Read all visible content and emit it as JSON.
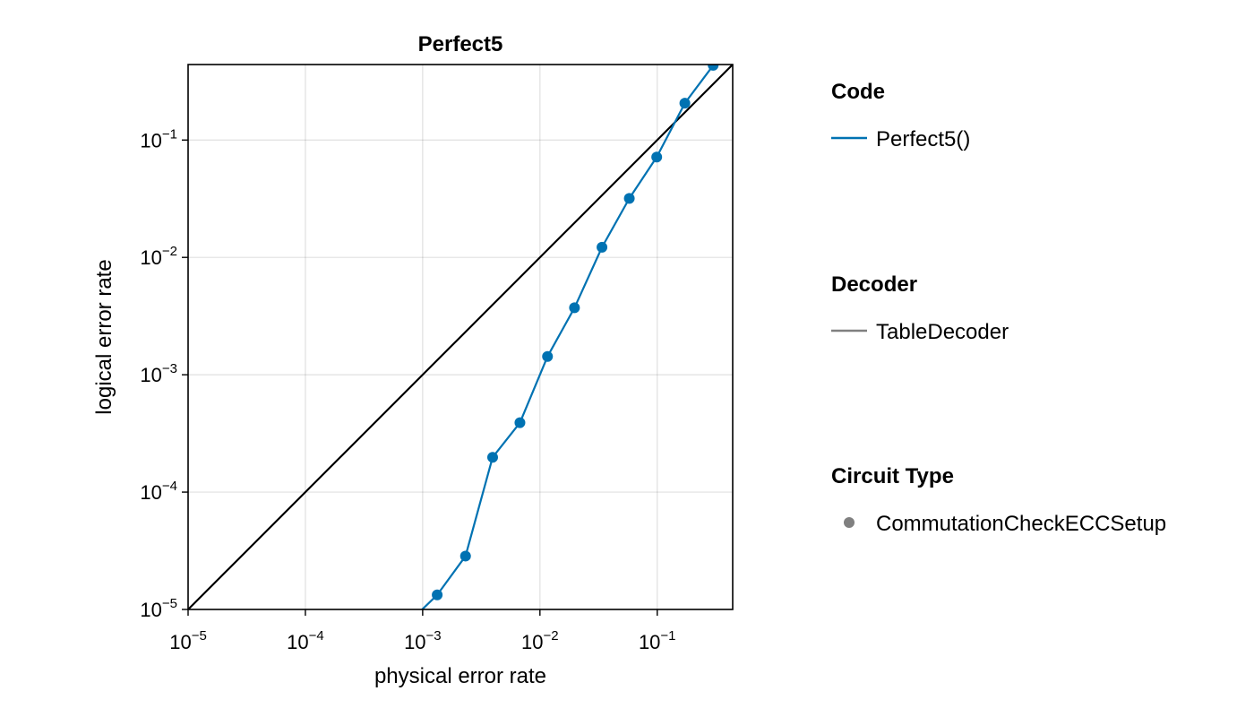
{
  "chart_data": {
    "type": "line",
    "title": "Perfect5",
    "xlabel": "physical error rate",
    "ylabel": "logical error rate",
    "x_scale": "log10",
    "y_scale": "log10",
    "xlim": [
      1e-05,
      0.44
    ],
    "ylim": [
      1e-05,
      0.44
    ],
    "grid": true,
    "x_ticks": [
      {
        "base": "10",
        "exp": "−5",
        "value": 1e-05
      },
      {
        "base": "10",
        "exp": "−4",
        "value": 0.0001
      },
      {
        "base": "10",
        "exp": "−3",
        "value": 0.001
      },
      {
        "base": "10",
        "exp": "−2",
        "value": 0.01
      },
      {
        "base": "10",
        "exp": "−1",
        "value": 0.1
      }
    ],
    "y_ticks": [
      {
        "base": "10",
        "exp": "−5",
        "value": 1e-05
      },
      {
        "base": "10",
        "exp": "−4",
        "value": 0.0001
      },
      {
        "base": "10",
        "exp": "−3",
        "value": 0.001
      },
      {
        "base": "10",
        "exp": "−2",
        "value": 0.01
      },
      {
        "base": "10",
        "exp": "−1",
        "value": 0.1
      }
    ],
    "reference_line": {
      "x": [
        1e-05,
        0.44
      ],
      "y": [
        1e-05,
        0.44
      ],
      "color": "#000000"
    },
    "series": [
      {
        "name": "Perfect5()",
        "color": "#0072b2",
        "marker": "circle",
        "x": [
          0.00099,
          0.00133,
          0.00232,
          0.00395,
          0.00675,
          0.0116,
          0.0197,
          0.0338,
          0.0578,
          0.099,
          0.172,
          0.3,
          0.44
        ],
        "y": [
          1e-05,
          1.33e-05,
          2.85e-05,
          0.000198,
          0.00039,
          0.00143,
          0.00372,
          0.0122,
          0.0318,
          0.0716,
          0.206,
          0.433,
          0.6
        ],
        "markers_visible": [
          false,
          true,
          true,
          true,
          true,
          true,
          true,
          true,
          true,
          true,
          true,
          true,
          false
        ]
      }
    ],
    "legend": {
      "placement": "right",
      "groups": [
        {
          "title": "Code",
          "entries": [
            {
              "label": "Perfect5()",
              "symbol": "line",
              "color": "#0072b2"
            }
          ]
        },
        {
          "title": "Decoder",
          "entries": [
            {
              "label": "TableDecoder",
              "symbol": "line",
              "color": "#808080"
            }
          ]
        },
        {
          "title": "Circuit Type",
          "entries": [
            {
              "label": "CommutationCheckECCSetup",
              "symbol": "circle",
              "color": "#808080"
            }
          ]
        }
      ]
    }
  }
}
